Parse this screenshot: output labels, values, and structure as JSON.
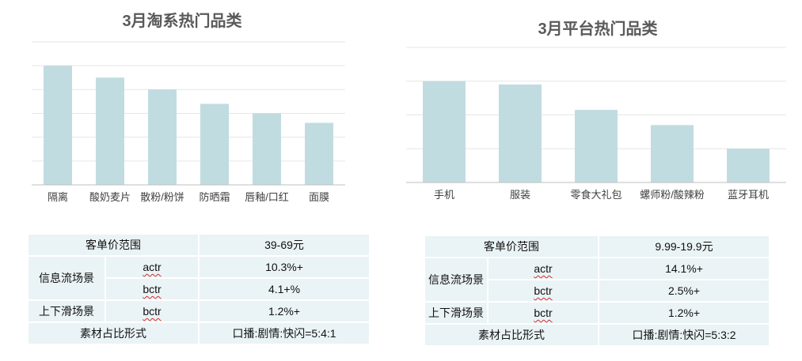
{
  "chart_data": [
    {
      "type": "bar",
      "title": "3月淘系热门品类",
      "categories": [
        "隔离",
        "酸奶麦片",
        "散粉/粉饼",
        "防晒霜",
        "唇釉/口红",
        "面膜"
      ],
      "values": [
        5.0,
        4.5,
        4.0,
        3.4,
        3.0,
        2.6
      ],
      "ylim": [
        0,
        6
      ],
      "grid": true,
      "color": "#c0dce1"
    },
    {
      "type": "bar",
      "title": "3月平台热门品类",
      "categories": [
        "手机",
        "服装",
        "零食大礼包",
        "螺师粉/酸辣粉",
        "蓝牙耳机"
      ],
      "values": [
        3.0,
        2.9,
        2.15,
        1.7,
        1.0
      ],
      "ylim": [
        0,
        4
      ],
      "grid": true,
      "color": "#c0dce1"
    }
  ],
  "tables": {
    "left": {
      "price_label": "客单价范围",
      "price_value": "39-69元",
      "info_flow_label": "信息流场景",
      "actr_label": "actr",
      "actr_value": "10.3%+",
      "bctr_label": "bctr",
      "bctr_value": "4.1+%",
      "swipe_label": "上下滑场景",
      "swipe_bctr_label": "bctr",
      "swipe_bctr_value": "1.2%+",
      "material_label": "素材占比形式",
      "material_value": "口播:剧情:快闪=5:4:1"
    },
    "right": {
      "price_label": "客单价范围",
      "price_value": "9.99-19.9元",
      "info_flow_label": "信息流场景",
      "actr_label": "actr",
      "actr_value": "14.1%+",
      "bctr_label": "bctr",
      "bctr_value": "2.5%+",
      "swipe_label": "上下滑场景",
      "swipe_bctr_label": "bctr",
      "swipe_bctr_value": "1.2%+",
      "material_label": "素材占比形式",
      "material_value": "口播:剧情:快闪=5:3:2"
    }
  }
}
